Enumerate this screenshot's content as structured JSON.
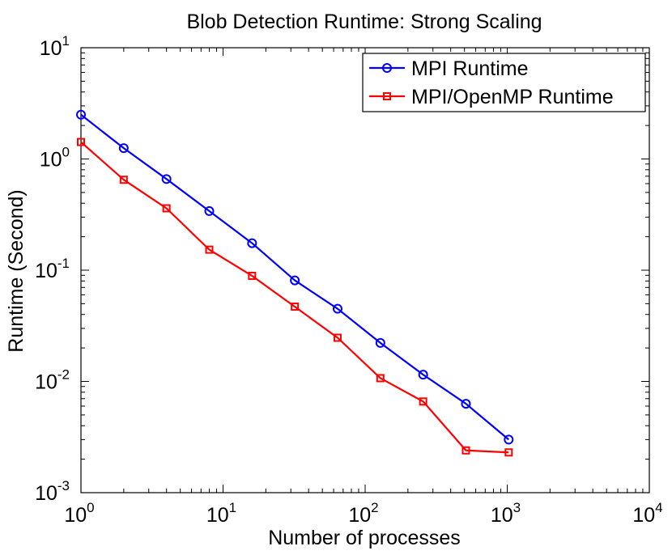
{
  "chart_data": {
    "type": "line",
    "title": "Blob Detection Runtime: Strong Scaling",
    "xlabel": "Number of processes",
    "ylabel": "Runtime (Second)",
    "xscale": "log",
    "yscale": "log",
    "xlim": [
      1,
      10000
    ],
    "ylim": [
      0.001,
      10
    ],
    "x_ticks": [
      {
        "value": 1,
        "base": "10",
        "exp": "0"
      },
      {
        "value": 10,
        "base": "10",
        "exp": "1"
      },
      {
        "value": 100,
        "base": "10",
        "exp": "2"
      },
      {
        "value": 1000,
        "base": "10",
        "exp": "3"
      },
      {
        "value": 10000,
        "base": "10",
        "exp": "4"
      }
    ],
    "y_ticks": [
      {
        "value": 0.001,
        "base": "10",
        "exp": "-3"
      },
      {
        "value": 0.01,
        "base": "10",
        "exp": "-2"
      },
      {
        "value": 0.1,
        "base": "10",
        "exp": "-1"
      },
      {
        "value": 1,
        "base": "10",
        "exp": "0"
      },
      {
        "value": 10,
        "base": "10",
        "exp": "1"
      }
    ],
    "grid": false,
    "legend_position": "top-right",
    "series": [
      {
        "name": "MPI Runtime",
        "color": "#0000ff",
        "marker": "circle",
        "x": [
          1,
          2,
          4,
          8,
          16,
          32,
          64,
          128,
          256,
          512,
          1024
        ],
        "y": [
          2.5,
          1.25,
          0.66,
          0.34,
          0.175,
          0.081,
          0.045,
          0.0222,
          0.0115,
          0.0063,
          0.003
        ]
      },
      {
        "name": "MPI/OpenMP Runtime",
        "color": "#ff0000",
        "marker": "square",
        "x": [
          1,
          2,
          4,
          8,
          16,
          32,
          64,
          128,
          256,
          512,
          1024
        ],
        "y": [
          1.42,
          0.65,
          0.36,
          0.153,
          0.089,
          0.047,
          0.0247,
          0.0107,
          0.0066,
          0.0024,
          0.0023
        ]
      }
    ]
  }
}
